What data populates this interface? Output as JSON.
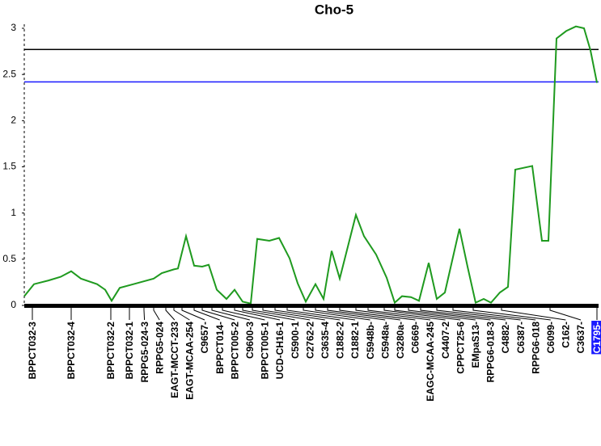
{
  "chart_data": {
    "type": "line",
    "title": "Cho-5",
    "color": "#1f9a1f",
    "x": [
      0,
      12,
      30,
      45,
      58,
      70,
      90,
      100,
      108,
      118,
      135,
      160,
      170,
      185,
      190,
      200,
      210,
      220,
      228,
      238,
      250,
      260,
      270,
      280,
      288,
      303,
      315,
      328,
      338,
      348,
      360,
      370,
      380,
      390,
      410,
      420,
      435,
      448,
      458,
      467,
      478,
      488,
      500,
      510,
      520,
      538,
      548,
      558,
      568,
      577,
      588,
      598,
      607,
      628,
      640,
      648,
      658,
      670,
      682,
      692,
      700,
      708
    ],
    "values": [
      0.1,
      0.23,
      0.27,
      0.31,
      0.37,
      0.29,
      0.23,
      0.17,
      0.05,
      0.19,
      0.23,
      0.29,
      0.35,
      0.39,
      0.4,
      0.75,
      0.43,
      0.42,
      0.44,
      0.17,
      0.07,
      0.17,
      0.04,
      0.02,
      0.72,
      0.7,
      0.73,
      0.51,
      0.24,
      0.04,
      0.23,
      0.07,
      0.59,
      0.29,
      0.98,
      0.75,
      0.55,
      0.3,
      0.03,
      0.1,
      0.09,
      0.05,
      0.46,
      0.07,
      0.14,
      0.83,
      0.42,
      0.03,
      0.07,
      0.03,
      0.14,
      0.2,
      1.47,
      1.51,
      0.7,
      0.7,
      2.89,
      2.97,
      3.02,
      3.0,
      2.76,
      2.41
    ],
    "xlim": [
      0,
      710
    ],
    "ylim": [
      0,
      3
    ],
    "yticks": [
      0,
      0.5,
      1,
      1.5,
      2,
      2.5,
      3
    ],
    "thresholds": [
      {
        "value": 2.77,
        "color": "#000000"
      },
      {
        "value": 2.42,
        "color": "#1a1aff"
      }
    ],
    "markers": {
      "names": [
        "BPPCT032-3",
        "BPPCT032-4",
        "BPPCT032-2",
        "BPPCT032-1",
        "RPPG5-024-3",
        "RPPG5-024",
        "EAGT-MCCT-233",
        "EAGT-MCAA-254",
        "C9657-",
        "BPPCT014-",
        "BPPCT005-2",
        "C9600-3",
        "BPPCT005-1",
        "UCD-CH16-1",
        "C5900-1",
        "C2762-2",
        "C3635-4",
        "C1882-2",
        "C1882-1",
        "C5948b-",
        "C5948a-",
        "C3280a-",
        "C6669-",
        "EAGC-MCAA-245",
        "C4407-2",
        "CPPCT25-6",
        "EMpaS13-",
        "RPPG6-018-3",
        "C4882-",
        "C6387-",
        "RPPG6-018",
        "C6099-",
        "C162-",
        "C3637-",
        "C1795-"
      ],
      "positions": [
        10,
        58,
        107,
        130,
        148,
        160,
        175,
        185,
        195,
        210,
        220,
        232,
        245,
        260,
        270,
        282,
        295,
        310,
        325,
        345,
        360,
        375,
        390,
        410,
        425,
        445,
        458,
        475,
        490,
        510,
        530,
        555,
        590,
        650,
        708
      ],
      "highlight": 34
    }
  }
}
